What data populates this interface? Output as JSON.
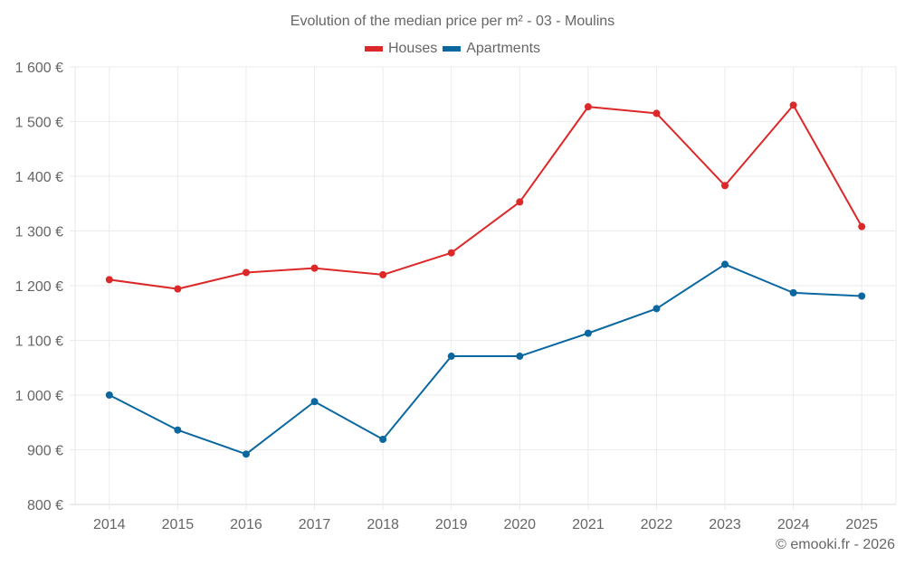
{
  "chart_data": {
    "type": "line",
    "title": "Evolution of the median price per m² - 03 - Moulins",
    "xlabel": "",
    "ylabel": "",
    "categories": [
      "2014",
      "2015",
      "2016",
      "2017",
      "2018",
      "2019",
      "2020",
      "2021",
      "2022",
      "2023",
      "2024",
      "2025"
    ],
    "series": [
      {
        "name": "Houses",
        "color": "#dc2828",
        "values": [
          1211,
          1194,
          1224,
          1232,
          1220,
          1260,
          1353,
          1527,
          1515,
          1383,
          1530,
          1308
        ]
      },
      {
        "name": "Apartments",
        "color": "#0a67a0",
        "values": [
          1000,
          936,
          892,
          988,
          919,
          1071,
          1071,
          1113,
          1158,
          1239,
          1187,
          1181
        ]
      }
    ],
    "ylim": [
      800,
      1600
    ],
    "yticks": [
      800,
      900,
      1000,
      1100,
      1200,
      1300,
      1400,
      1500,
      1600
    ],
    "ytick_labels": [
      "800 €",
      "900 €",
      "1 000 €",
      "1 100 €",
      "1 200 €",
      "1 300 €",
      "1 400 €",
      "1 500 €",
      "1 600 €"
    ],
    "grid": true,
    "legend_position": "top-center"
  },
  "footer": {
    "copyright": "© emooki.fr - 2026"
  }
}
